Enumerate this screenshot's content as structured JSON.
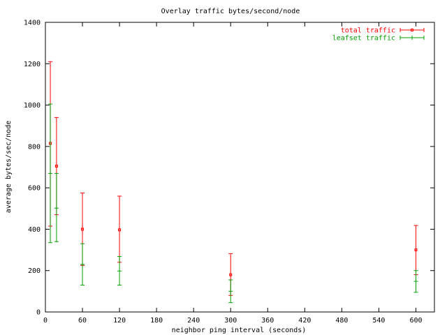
{
  "chart_data": {
    "type": "scatter",
    "title": "Overlay traffic bytes/second/node",
    "xlabel": "neighbor ping interval (seconds)",
    "ylabel": "average bytes/sec/node",
    "xlim": [
      0,
      630
    ],
    "ylim": [
      0,
      1400
    ],
    "xticks": [
      0,
      60,
      120,
      180,
      240,
      300,
      360,
      420,
      480,
      540,
      600
    ],
    "yticks": [
      0,
      200,
      400,
      600,
      800,
      1000,
      1200,
      1400
    ],
    "grid": false,
    "legend_position": "top-right",
    "series": [
      {
        "name": "total traffic",
        "color": "#ff0000",
        "points": [
          {
            "x": 8,
            "y": 815,
            "lo": 415,
            "hi": 1210
          },
          {
            "x": 18,
            "y": 705,
            "lo": 470,
            "hi": 940
          },
          {
            "x": 60,
            "y": 400,
            "lo": 225,
            "hi": 575
          },
          {
            "x": 120,
            "y": 397,
            "lo": 240,
            "hi": 560
          },
          {
            "x": 300,
            "y": 180,
            "lo": 80,
            "hi": 282
          },
          {
            "x": 600,
            "y": 300,
            "lo": 180,
            "hi": 418
          }
        ]
      },
      {
        "name": "leafset traffic",
        "color": "#00a000",
        "points": [
          {
            "x": 8,
            "y": 670,
            "lo": 335,
            "hi": 1005
          },
          {
            "x": 18,
            "y": 502,
            "lo": 340,
            "hi": 670
          },
          {
            "x": 60,
            "y": 230,
            "lo": 130,
            "hi": 330
          },
          {
            "x": 120,
            "y": 198,
            "lo": 130,
            "hi": 268
          },
          {
            "x": 300,
            "y": 100,
            "lo": 45,
            "hi": 155
          },
          {
            "x": 600,
            "y": 148,
            "lo": 95,
            "hi": 200
          }
        ]
      }
    ]
  }
}
